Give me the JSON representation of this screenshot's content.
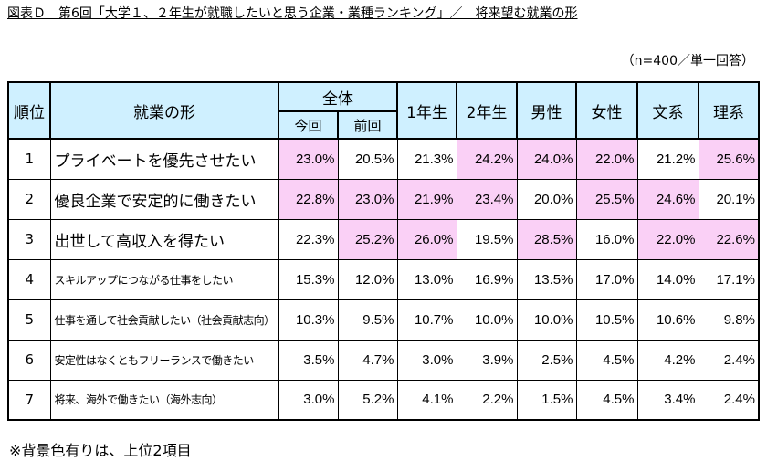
{
  "title": "図表Ｄ　第6回「大学１、２年生が就職したいと思う企業・業種ランキング」／　将来望む就業の形",
  "sample_note": "（n=400／単一回答）",
  "footnote": "※背景色有りは、上位2項目",
  "headers": {
    "rank": "順位",
    "form": "就業の形",
    "overall": "全体",
    "current": "今回",
    "previous": "前回",
    "year1": "1年生",
    "year2": "2年生",
    "male": "男性",
    "female": "女性",
    "humanities": "文系",
    "science": "理系"
  },
  "rows": [
    {
      "rank": "1",
      "label": "プライベートを優先させたい",
      "size": "big",
      "values": [
        "23.0%",
        "20.5%",
        "21.3%",
        "24.2%",
        "24.0%",
        "22.0%",
        "21.2%",
        "25.6%"
      ],
      "highlight": [
        true,
        false,
        false,
        true,
        true,
        true,
        false,
        true
      ]
    },
    {
      "rank": "2",
      "label": "優良企業で安定的に働きたい",
      "size": "big",
      "values": [
        "22.8%",
        "23.0%",
        "21.9%",
        "23.4%",
        "20.0%",
        "25.5%",
        "24.6%",
        "20.1%"
      ],
      "highlight": [
        true,
        true,
        true,
        true,
        false,
        true,
        true,
        false
      ]
    },
    {
      "rank": "3",
      "label": "出世して高収入を得たい",
      "size": "big",
      "values": [
        "22.3%",
        "25.2%",
        "26.0%",
        "19.5%",
        "28.5%",
        "16.0%",
        "22.0%",
        "22.6%"
      ],
      "highlight": [
        false,
        true,
        true,
        false,
        true,
        false,
        true,
        true
      ]
    },
    {
      "rank": "4",
      "label": "スキルアップにつながる仕事をしたい",
      "size": "small",
      "values": [
        "15.3%",
        "12.0%",
        "13.0%",
        "16.9%",
        "13.5%",
        "17.0%",
        "14.0%",
        "17.1%"
      ],
      "highlight": [
        false,
        false,
        false,
        false,
        false,
        false,
        false,
        false
      ]
    },
    {
      "rank": "5",
      "label": "仕事を通して社会貢献したい（社会貢献志向）",
      "size": "small",
      "values": [
        "10.3%",
        "9.5%",
        "10.7%",
        "10.0%",
        "10.0%",
        "10.5%",
        "10.6%",
        "9.8%"
      ],
      "highlight": [
        false,
        false,
        false,
        false,
        false,
        false,
        false,
        false
      ]
    },
    {
      "rank": "6",
      "label": "安定性はなくともフリーランスで働きたい",
      "size": "small",
      "values": [
        "3.5%",
        "4.7%",
        "3.0%",
        "3.9%",
        "2.5%",
        "4.5%",
        "4.2%",
        "2.4%"
      ],
      "highlight": [
        false,
        false,
        false,
        false,
        false,
        false,
        false,
        false
      ]
    },
    {
      "rank": "7",
      "label": "将来、海外で働きたい（海外志向）",
      "size": "small",
      "values": [
        "3.0%",
        "5.2%",
        "4.1%",
        "2.2%",
        "1.5%",
        "4.5%",
        "3.4%",
        "2.4%"
      ],
      "highlight": [
        false,
        false,
        false,
        false,
        false,
        false,
        false,
        false
      ]
    }
  ],
  "colors": {
    "header_bg": "#cff0ff",
    "highlight_bg": "#fad0f6"
  }
}
